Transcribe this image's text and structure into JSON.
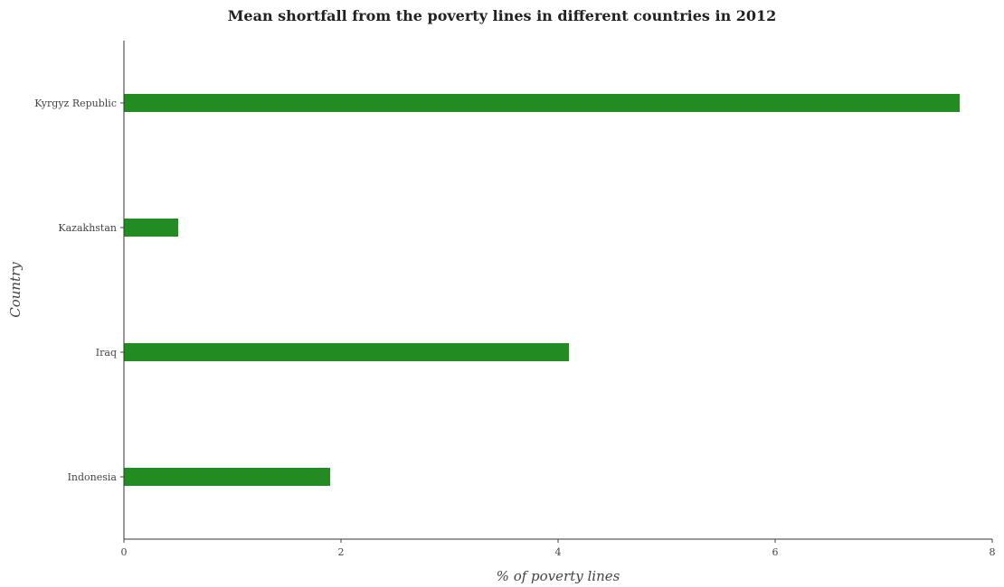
{
  "chart_data": {
    "type": "bar",
    "orientation": "horizontal",
    "title": "Mean shortfall from the poverty lines in different countries in 2012",
    "xlabel": "% of poverty lines",
    "ylabel": "Country",
    "categories": [
      "Indonesia",
      "Iraq",
      "Kazakhstan",
      "Kyrgyz Republic"
    ],
    "values": [
      1.9,
      4.1,
      0.5,
      7.7
    ],
    "xlim": [
      0,
      8
    ],
    "xticks": [
      0,
      2,
      4,
      6,
      8
    ],
    "xtick_labels": [
      "0",
      "2",
      "4",
      "6",
      "8"
    ],
    "grid": false,
    "bar_color": "#228b22"
  }
}
